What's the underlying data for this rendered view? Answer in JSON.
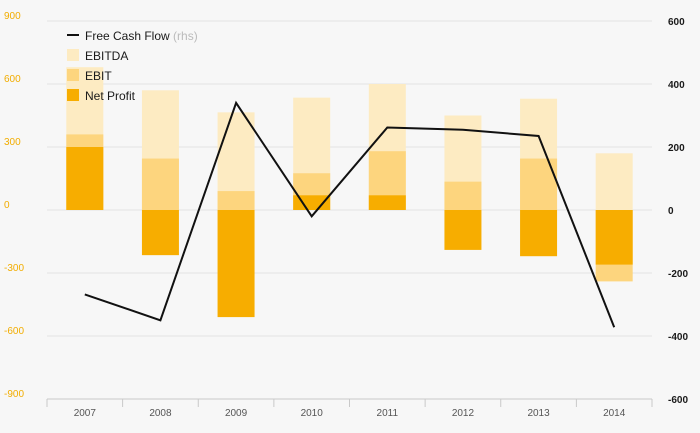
{
  "chart_data": {
    "type": "bar",
    "categories": [
      "2007",
      "2008",
      "2009",
      "2010",
      "2011",
      "2012",
      "2013",
      "2014"
    ],
    "left_axis": {
      "ylim": [
        -900,
        900
      ],
      "ticks": [
        "900",
        "600",
        "300",
        "0",
        "-300",
        "-600",
        "-900"
      ]
    },
    "right_axis": {
      "ylim": [
        -600,
        600
      ],
      "ticks": [
        "600",
        "400",
        "200",
        "0",
        "-200",
        "-400",
        "-600"
      ]
    },
    "series": [
      {
        "name": "EBITDA",
        "type": "bar",
        "axis": "left",
        "color": "#fdebc2",
        "values": [
          680,
          570,
          465,
          535,
          600,
          450,
          530,
          270
        ]
      },
      {
        "name": "EBIT",
        "type": "bar",
        "axis": "left",
        "color": "#fdd57e",
        "values": [
          360,
          245,
          90,
          175,
          280,
          135,
          245,
          -340
        ]
      },
      {
        "name": "Net Profit",
        "type": "bar",
        "axis": "left",
        "color": "#f7ad00",
        "values": [
          300,
          -215,
          -510,
          70,
          70,
          -190,
          -220,
          -260
        ]
      },
      {
        "name": "Free Cash Flow",
        "type": "line",
        "axis": "right",
        "color": "#111111",
        "values": [
          -268,
          -350,
          340,
          -20,
          262,
          255,
          235,
          -372
        ]
      }
    ],
    "legend": {
      "position": "top-left",
      "items": [
        {
          "label": "Free Cash Flow",
          "note": "(rhs)",
          "color": "#111111",
          "marker": "line"
        },
        {
          "label": "EBITDA",
          "note": "",
          "color": "#fdebc2",
          "marker": "square"
        },
        {
          "label": "EBIT",
          "note": "",
          "color": "#fdd57e",
          "marker": "square"
        },
        {
          "label": "Net Profit",
          "note": "",
          "color": "#f7ad00",
          "marker": "square"
        }
      ]
    },
    "grid": true
  }
}
